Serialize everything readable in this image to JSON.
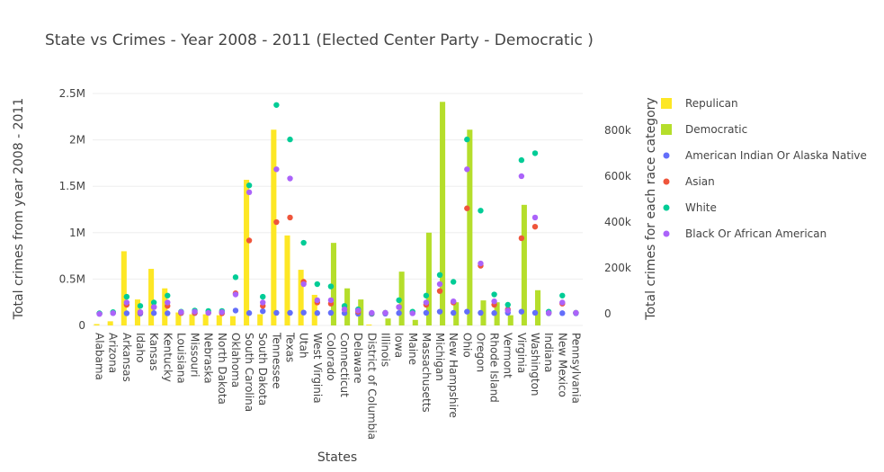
{
  "chart_data": {
    "type": "bar",
    "title": "State vs Crimes - Year 2008 - 2011 (Elected Center Party - Democratic )",
    "xlabel": "States",
    "ylabel": "Total crimes from year 2008 - 2011",
    "y2label": "Total crimes for each race category",
    "categories": [
      "Alabama",
      "Arizona",
      "Arkansas",
      "Idaho",
      "Kansas",
      "Kentucky",
      "Louisiana",
      "Missouri",
      "Nebraska",
      "North Dakota",
      "Oklahoma",
      "South Carolina",
      "South Dakota",
      "Tennessee",
      "Texas",
      "Utah",
      "West Virginia",
      "Colorado",
      "Connecticut",
      "Delaware",
      "District of Columbia",
      "Illinois",
      "Iowa",
      "Maine",
      "Massachusetts",
      "Michigan",
      "New Hampshire",
      "Ohio",
      "Oregon",
      "Rhode Island",
      "Vermont",
      "Virginia",
      "Washington",
      "Indiana",
      "New Mexico",
      "Pennsylvania"
    ],
    "ylim": [
      0,
      2500000
    ],
    "y_ticks": [
      0,
      500000,
      1000000,
      1500000,
      2000000,
      2500000
    ],
    "y_tick_labels": [
      "0",
      "0.5M",
      "1M",
      "1.5M",
      "2M",
      "2.5M"
    ],
    "y2lim": [
      -50000,
      960000
    ],
    "y2_ticks": [
      0,
      200000,
      400000,
      600000,
      800000
    ],
    "y2_tick_labels": [
      "0",
      "200k",
      "400k",
      "600k",
      "800k"
    ],
    "bar_series": [
      {
        "name": "Repulican",
        "color": "#fde725",
        "values": [
          15000,
          45000,
          800000,
          280000,
          610000,
          400000,
          140000,
          120000,
          120000,
          110000,
          100000,
          1570000,
          120000,
          2110000,
          970000,
          600000,
          330000,
          0,
          0,
          0,
          10000,
          0,
          0,
          0,
          0,
          0,
          0,
          0,
          0,
          0,
          0,
          0,
          0,
          0,
          0,
          0
        ]
      },
      {
        "name": "Democratic",
        "color": "#b5de2b",
        "values": [
          0,
          0,
          0,
          0,
          0,
          0,
          0,
          0,
          0,
          0,
          0,
          0,
          0,
          0,
          0,
          0,
          0,
          890000,
          400000,
          280000,
          0,
          75000,
          580000,
          60000,
          1000000,
          2410000,
          250000,
          2110000,
          270000,
          250000,
          110000,
          1300000,
          380000,
          0,
          0,
          0
        ]
      }
    ],
    "scatter_series": [
      {
        "name": "American Indian Or Alaska Native",
        "color": "#636efa",
        "values": [
          1000,
          4000,
          3000,
          2000,
          4000,
          3000,
          4000,
          4000,
          5000,
          7000,
          15000,
          4000,
          12000,
          5000,
          5000,
          6000,
          4000,
          5000,
          4000,
          1000,
          500,
          1500,
          4000,
          4000,
          5000,
          10000,
          5000,
          10000,
          5000,
          4000,
          5000,
          10000,
          5000,
          3000,
          3500,
          3000
        ]
      },
      {
        "name": "Asian",
        "color": "#ef553b",
        "values": [
          2000,
          5000,
          40000,
          7000,
          30000,
          35000,
          5000,
          5000,
          5000,
          3000,
          90000,
          320000,
          35000,
          400000,
          420000,
          140000,
          50000,
          45000,
          20000,
          10000,
          2000,
          5000,
          30000,
          5000,
          40000,
          100000,
          50000,
          460000,
          210000,
          40000,
          20000,
          330000,
          380000,
          5000,
          45000,
          5000
        ]
      },
      {
        "name": "White",
        "color": "#00cc96",
        "values": [
          3000,
          8000,
          75000,
          35000,
          50000,
          80000,
          10000,
          15000,
          13000,
          13000,
          160000,
          560000,
          75000,
          910000,
          760000,
          310000,
          130000,
          120000,
          35000,
          20000,
          3000,
          5000,
          60000,
          10000,
          80000,
          170000,
          140000,
          760000,
          450000,
          85000,
          40000,
          670000,
          700000,
          10000,
          80000,
          5000
        ]
      },
      {
        "name": "Black Or African American",
        "color": "#ab63fa",
        "values": [
          0,
          4000,
          50000,
          8000,
          30000,
          50000,
          8000,
          10000,
          5000,
          8000,
          85000,
          530000,
          50000,
          630000,
          590000,
          130000,
          60000,
          60000,
          20000,
          15000,
          5000,
          5000,
          30000,
          3000,
          50000,
          130000,
          55000,
          630000,
          220000,
          55000,
          15000,
          600000,
          420000,
          5000,
          50000,
          5000
        ]
      }
    ],
    "legend": {
      "position": "right"
    },
    "grid": true
  }
}
